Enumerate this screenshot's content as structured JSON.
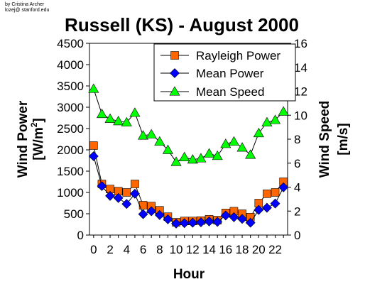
{
  "credit": {
    "line1": "by Cristina Archer",
    "line2": "lozej@ stanford.edu"
  },
  "chart_data": {
    "type": "line",
    "title": "Russell (KS) - August 2000",
    "xlabel": "Hour",
    "ylabel_left": "Wind Power",
    "ylabel_left_unit_prefix": "[W/m",
    "ylabel_left_unit_sup": "2",
    "ylabel_left_unit_suffix": "]",
    "ylabel_right": "Wind Speed",
    "ylabel_right_unit": "[m/s]",
    "x_ticks": [
      0,
      2,
      4,
      6,
      8,
      10,
      12,
      14,
      16,
      18,
      20,
      22
    ],
    "xlim": [
      -0.5,
      23.5
    ],
    "ylim_left": [
      0,
      4500
    ],
    "y_ticks_left": [
      0,
      500,
      1000,
      1500,
      2000,
      2500,
      3000,
      3500,
      4000,
      4500
    ],
    "ylim_right": [
      0,
      16
    ],
    "y_ticks_right": [
      0,
      2,
      4,
      6,
      8,
      10,
      12,
      14,
      16
    ],
    "grid": false,
    "legend_position": "top-right",
    "x": [
      0,
      1,
      2,
      3,
      4,
      5,
      6,
      7,
      8,
      9,
      10,
      11,
      12,
      13,
      14,
      15,
      16,
      17,
      18,
      19,
      20,
      21,
      22,
      23
    ],
    "series": [
      {
        "name": "Rayleigh Power",
        "axis": "left",
        "marker": "square",
        "color": "#ff6600",
        "values": [
          2100,
          1200,
          1080,
          1030,
          1000,
          1200,
          700,
          680,
          580,
          430,
          300,
          330,
          330,
          340,
          370,
          350,
          520,
          560,
          500,
          420,
          750,
          970,
          1000,
          1250
        ]
      },
      {
        "name": "Mean Power",
        "axis": "left",
        "marker": "diamond",
        "color": "#0000ff",
        "values": [
          1850,
          1150,
          920,
          870,
          730,
          970,
          490,
          560,
          470,
          370,
          270,
          280,
          290,
          300,
          320,
          310,
          460,
          420,
          380,
          290,
          590,
          640,
          740,
          1120
        ]
      },
      {
        "name": "Mean Speed",
        "axis": "right",
        "marker": "triangle",
        "color": "#00ff00",
        "values": [
          12.2,
          10.1,
          9.7,
          9.5,
          9.4,
          10.2,
          8.3,
          8.4,
          7.8,
          7.1,
          6.1,
          6.5,
          6.3,
          6.4,
          6.8,
          6.6,
          7.6,
          7.8,
          7.3,
          6.7,
          8.5,
          9.4,
          9.6,
          10.3
        ]
      }
    ]
  }
}
